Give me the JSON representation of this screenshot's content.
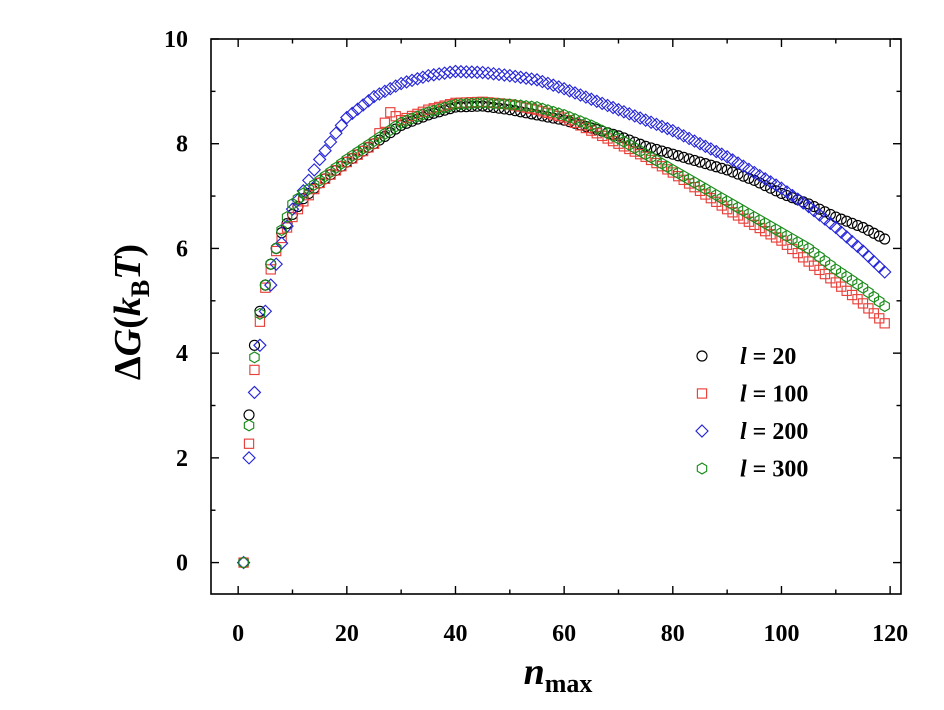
{
  "chart_data": {
    "type": "scatter",
    "xlim": [
      -5,
      122
    ],
    "ylim": [
      -0.6,
      10
    ],
    "x_ticks": [
      0,
      20,
      40,
      60,
      80,
      100,
      120
    ],
    "y_ticks": [
      0,
      2,
      4,
      6,
      8,
      10
    ],
    "x_tick_labels": [
      "0",
      "20",
      "40",
      "60",
      "80",
      "100",
      "120"
    ],
    "y_tick_labels": [
      "0",
      "2",
      "4",
      "6",
      "8",
      "10"
    ],
    "xlabel": {
      "main": "n",
      "sub": "max"
    },
    "ylabel": {
      "pre": "ΔG(",
      "k": "k",
      "sub": "B",
      "T": "T",
      "post": ")"
    },
    "grid": false,
    "legend_position": "right-middle",
    "series": [
      {
        "name": {
          "var": "l",
          "eq": " = 20"
        },
        "marker": "circle",
        "color": "#000000",
        "anchors": [
          [
            1,
            0
          ],
          [
            2,
            2.82
          ],
          [
            3,
            4.15
          ],
          [
            4,
            4.8
          ],
          [
            5,
            5.3
          ],
          [
            6,
            5.7
          ],
          [
            7,
            6.0
          ],
          [
            8,
            6.3
          ],
          [
            10,
            6.65
          ],
          [
            12,
            6.95
          ],
          [
            15,
            7.25
          ],
          [
            20,
            7.65
          ],
          [
            25,
            8.0
          ],
          [
            30,
            8.35
          ],
          [
            35,
            8.55
          ],
          [
            40,
            8.7
          ],
          [
            45,
            8.72
          ],
          [
            50,
            8.65
          ],
          [
            55,
            8.55
          ],
          [
            60,
            8.45
          ],
          [
            65,
            8.3
          ],
          [
            70,
            8.15
          ],
          [
            75,
            7.95
          ],
          [
            80,
            7.8
          ],
          [
            85,
            7.65
          ],
          [
            90,
            7.5
          ],
          [
            95,
            7.3
          ],
          [
            100,
            7.05
          ],
          [
            105,
            6.85
          ],
          [
            110,
            6.6
          ],
          [
            115,
            6.4
          ],
          [
            119,
            6.18
          ]
        ]
      },
      {
        "name": {
          "var": "l",
          "eq": " = 100"
        },
        "marker": "square",
        "color": "#e8413b",
        "anchors": [
          [
            1,
            0
          ],
          [
            2,
            2.27
          ],
          [
            3,
            3.68
          ],
          [
            4,
            4.6
          ],
          [
            5,
            5.25
          ],
          [
            6,
            5.6
          ],
          [
            7,
            5.95
          ],
          [
            8,
            6.2
          ],
          [
            10,
            6.6
          ],
          [
            12,
            6.9
          ],
          [
            15,
            7.25
          ],
          [
            20,
            7.65
          ],
          [
            25,
            8.0
          ],
          [
            28,
            8.6
          ],
          [
            30,
            8.45
          ],
          [
            35,
            8.65
          ],
          [
            40,
            8.78
          ],
          [
            45,
            8.8
          ],
          [
            50,
            8.75
          ],
          [
            55,
            8.65
          ],
          [
            60,
            8.5
          ],
          [
            65,
            8.25
          ],
          [
            70,
            8.0
          ],
          [
            75,
            7.75
          ],
          [
            80,
            7.45
          ],
          [
            85,
            7.1
          ],
          [
            90,
            6.75
          ],
          [
            95,
            6.45
          ],
          [
            100,
            6.15
          ],
          [
            105,
            5.75
          ],
          [
            110,
            5.35
          ],
          [
            115,
            4.95
          ],
          [
            119,
            4.57
          ]
        ]
      },
      {
        "name": {
          "var": "l",
          "eq": " = 200"
        },
        "marker": "diamond",
        "color": "#2626d9",
        "anchors": [
          [
            1,
            0
          ],
          [
            2,
            2.0
          ],
          [
            3,
            3.25
          ],
          [
            4,
            4.15
          ],
          [
            5,
            4.8
          ],
          [
            6,
            5.3
          ],
          [
            7,
            5.7
          ],
          [
            8,
            6.1
          ],
          [
            10,
            6.75
          ],
          [
            12,
            7.1
          ],
          [
            15,
            7.7
          ],
          [
            18,
            8.2
          ],
          [
            20,
            8.5
          ],
          [
            25,
            8.9
          ],
          [
            30,
            9.15
          ],
          [
            35,
            9.3
          ],
          [
            40,
            9.38
          ],
          [
            45,
            9.36
          ],
          [
            50,
            9.3
          ],
          [
            55,
            9.22
          ],
          [
            60,
            9.05
          ],
          [
            65,
            8.85
          ],
          [
            70,
            8.65
          ],
          [
            75,
            8.45
          ],
          [
            80,
            8.25
          ],
          [
            85,
            8.0
          ],
          [
            90,
            7.75
          ],
          [
            95,
            7.45
          ],
          [
            100,
            7.15
          ],
          [
            105,
            6.8
          ],
          [
            110,
            6.4
          ],
          [
            115,
            5.95
          ],
          [
            119,
            5.55
          ]
        ]
      },
      {
        "name": {
          "var": "l",
          "eq": " = 300"
        },
        "marker": "hexagon",
        "color": "#1a8c1a",
        "anchors": [
          [
            1,
            0
          ],
          [
            2,
            2.62
          ],
          [
            3,
            3.92
          ],
          [
            4,
            4.75
          ],
          [
            5,
            5.3
          ],
          [
            6,
            5.7
          ],
          [
            7,
            6.0
          ],
          [
            8,
            6.35
          ],
          [
            10,
            6.85
          ],
          [
            12,
            7.05
          ],
          [
            15,
            7.3
          ],
          [
            20,
            7.7
          ],
          [
            25,
            8.05
          ],
          [
            30,
            8.4
          ],
          [
            35,
            8.6
          ],
          [
            40,
            8.75
          ],
          [
            45,
            8.78
          ],
          [
            50,
            8.75
          ],
          [
            55,
            8.7
          ],
          [
            60,
            8.55
          ],
          [
            65,
            8.35
          ],
          [
            70,
            8.1
          ],
          [
            75,
            7.8
          ],
          [
            80,
            7.5
          ],
          [
            85,
            7.2
          ],
          [
            90,
            6.9
          ],
          [
            95,
            6.6
          ],
          [
            100,
            6.3
          ],
          [
            105,
            6.0
          ],
          [
            110,
            5.6
          ],
          [
            115,
            5.25
          ],
          [
            119,
            4.9
          ]
        ]
      }
    ]
  }
}
